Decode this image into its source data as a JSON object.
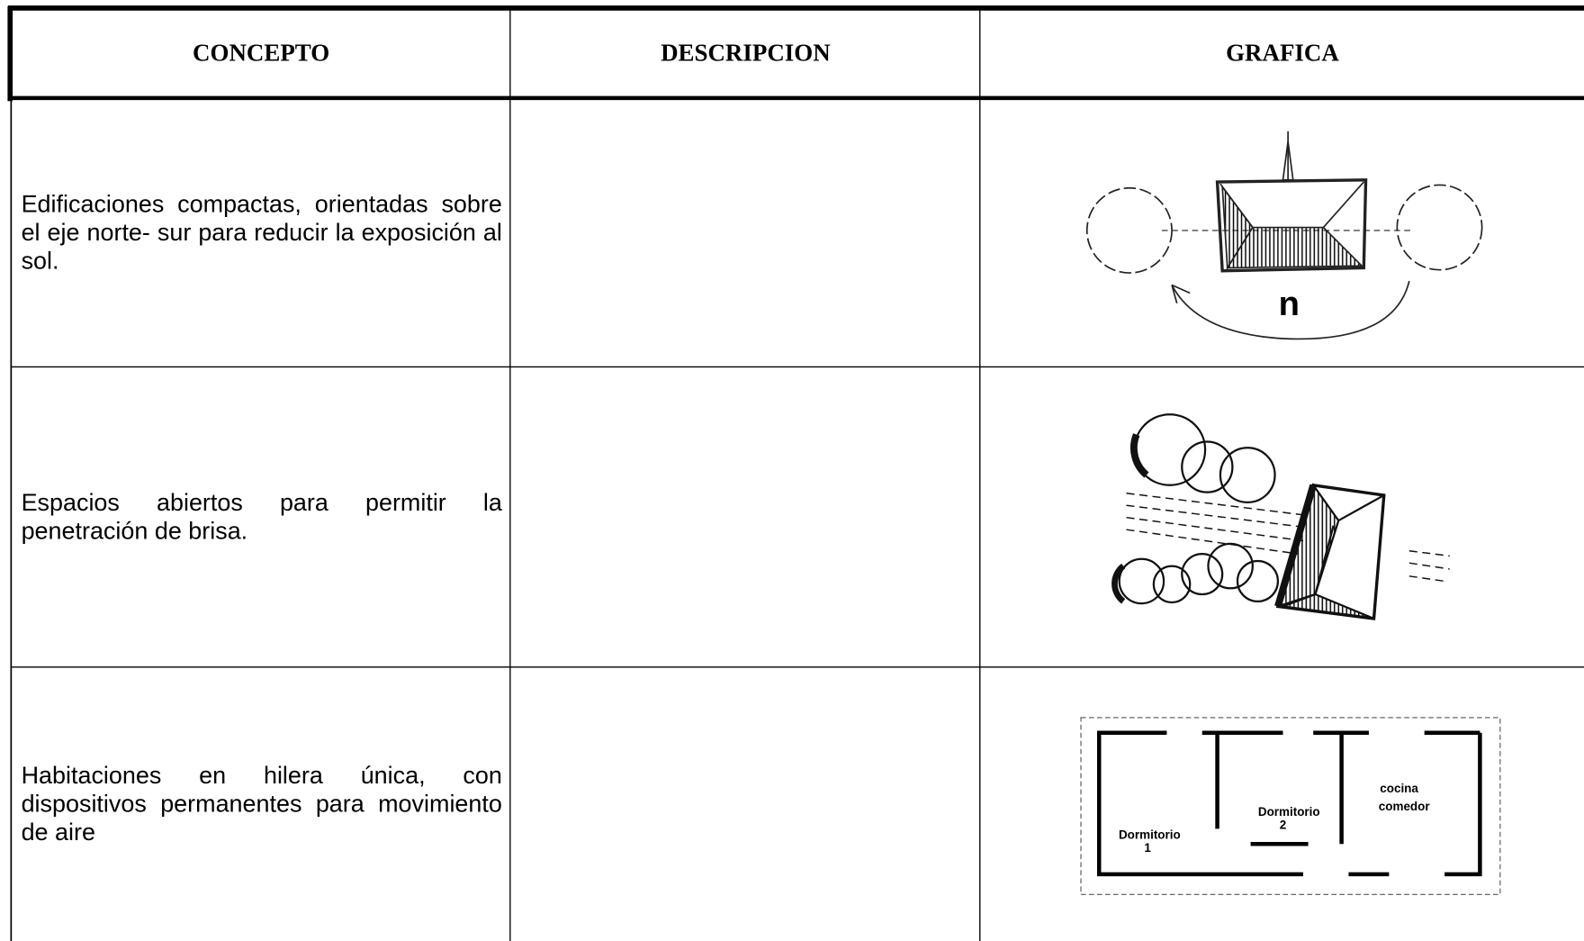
{
  "table": {
    "headers": [
      "CONCEPTO",
      "DESCRIPCION",
      "GRAFICA"
    ],
    "rows": [
      {
        "concepto": "Edificaciones compactas, orientadas sobre el eje norte- sur para reducir la exposición al sol."
      },
      {
        "concepto": "Espacios abiertos para permitir la penetración de brisa."
      },
      {
        "concepto": "Habitaciones en hilera única, con dispositivos permanentes para movimiento de aire"
      }
    ]
  },
  "figures": {
    "orientation": {
      "label": "n"
    },
    "floor_plan": {
      "rooms": [
        [
          "cocina",
          "comedor"
        ],
        [
          "Dormitorio",
          "2"
        ],
        [
          "Dormitorio",
          "1"
        ]
      ]
    }
  }
}
